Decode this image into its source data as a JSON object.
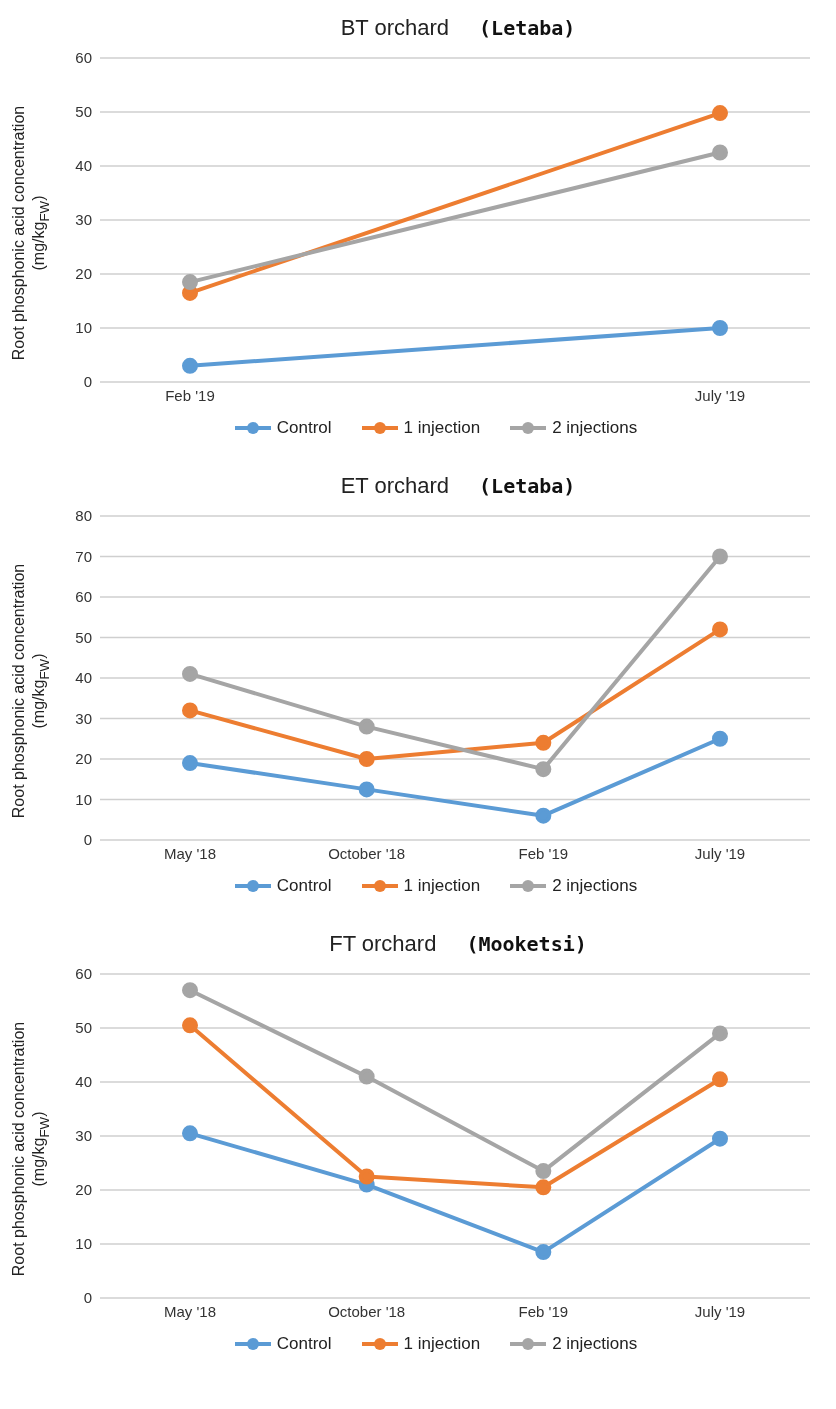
{
  "chart_data": [
    {
      "type": "line",
      "title": "BT orchard",
      "subtitle": "(Letaba)",
      "ylabel": "Root phosphonic acid concentration (mg/kg$_{FW}$)",
      "categories": [
        "Feb '19",
        "July '19"
      ],
      "ylim": [
        0,
        60
      ],
      "yticks": [
        0,
        10,
        20,
        30,
        40,
        50,
        60
      ],
      "grid": "y",
      "legend": "bottom",
      "marker": "circle",
      "line_style": "solid",
      "series": [
        {
          "name": "Control",
          "color": "#5b9bd5",
          "values": [
            3,
            10
          ]
        },
        {
          "name": "1 injection",
          "color": "#ed7d31",
          "values": [
            16.5,
            49.8
          ]
        },
        {
          "name": "2 injections",
          "color": "#a5a5a5",
          "values": [
            18.5,
            42.5
          ]
        }
      ]
    },
    {
      "type": "line",
      "title": "ET orchard",
      "subtitle": "(Letaba)",
      "ylabel": "Root phosphonic acid concentration (mg/kg$_{FW}$)",
      "categories": [
        "May '18",
        "October '18",
        "Feb '19",
        "July '19"
      ],
      "ylim": [
        0,
        80
      ],
      "yticks": [
        0,
        10,
        20,
        30,
        40,
        50,
        60,
        70,
        80
      ],
      "grid": "y",
      "legend": "bottom",
      "marker": "circle",
      "line_style": "solid",
      "series": [
        {
          "name": "Control",
          "color": "#5b9bd5",
          "values": [
            19,
            12.5,
            6,
            25
          ]
        },
        {
          "name": "1 injection",
          "color": "#ed7d31",
          "values": [
            32,
            20,
            24,
            52
          ]
        },
        {
          "name": "2 injections",
          "color": "#a5a5a5",
          "values": [
            41,
            28,
            17.5,
            70
          ]
        }
      ]
    },
    {
      "type": "line",
      "title": "FT orchard",
      "subtitle": "(Mooketsi)",
      "ylabel": "Root phosphonic acid concentration (mg/kg$_{FW}$)",
      "categories": [
        "May '18",
        "October '18",
        "Feb '19",
        "July '19"
      ],
      "ylim": [
        0,
        60
      ],
      "yticks": [
        0,
        10,
        20,
        30,
        40,
        50,
        60
      ],
      "grid": "y",
      "legend": "bottom",
      "marker": "circle",
      "line_style": "solid",
      "series": [
        {
          "name": "Control",
          "color": "#5b9bd5",
          "values": [
            30.5,
            21,
            8.5,
            29.5
          ]
        },
        {
          "name": "1 injection",
          "color": "#ed7d31",
          "values": [
            50.5,
            22.5,
            20.5,
            40.5
          ]
        },
        {
          "name": "2 injections",
          "color": "#a5a5a5",
          "values": [
            57,
            41,
            23.5,
            49
          ]
        }
      ]
    }
  ]
}
